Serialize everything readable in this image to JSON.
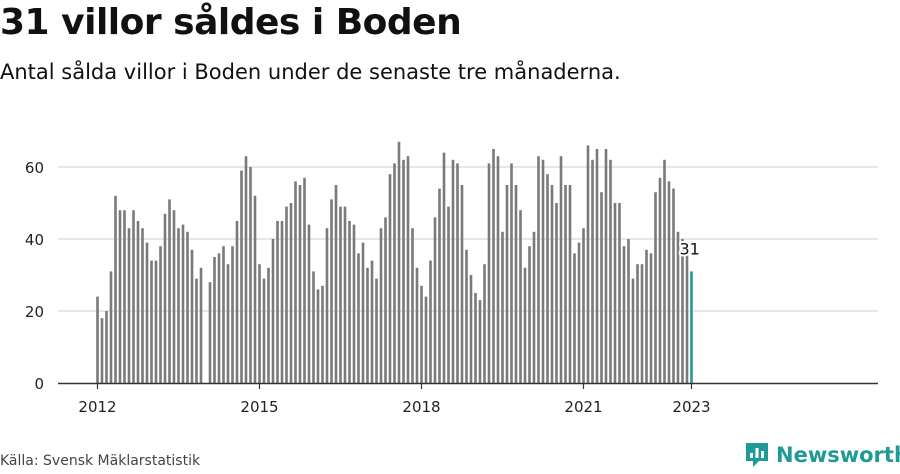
{
  "title": "31 villor såldes i Boden",
  "subtitle": "Antal sålda villor i Boden under de senaste tre månaderna.",
  "source": "Källa: Svensk Mäklarstatistik",
  "brand": "Newsworthy",
  "colors": {
    "bar": "#7a7a7a",
    "highlight": "#1f9a96",
    "grid": "#dddddd",
    "axis": "#333333"
  },
  "chart_data": {
    "type": "bar",
    "title": "31 villor såldes i Boden",
    "xlabel": "",
    "ylabel": "",
    "ylim": [
      0,
      70
    ],
    "yticks": [
      0,
      20,
      40,
      60
    ],
    "xticks": [
      {
        "label": "2012",
        "index": 0
      },
      {
        "label": "2015",
        "index": 36
      },
      {
        "label": "2018",
        "index": 72
      },
      {
        "label": "2021",
        "index": 108
      },
      {
        "label": "2023",
        "index": 132
      }
    ],
    "x_start": "2012-01",
    "highlight_label": "31",
    "values": [
      24,
      18,
      20,
      31,
      52,
      48,
      48,
      43,
      48,
      45,
      43,
      39,
      34,
      34,
      38,
      47,
      51,
      48,
      43,
      44,
      42,
      37,
      29,
      32,
      0,
      28,
      35,
      36,
      38,
      33,
      38,
      45,
      59,
      63,
      60,
      52,
      33,
      29,
      32,
      40,
      45,
      45,
      49,
      50,
      56,
      55,
      57,
      44,
      31,
      26,
      27,
      43,
      51,
      55,
      49,
      49,
      45,
      44,
      36,
      39,
      32,
      34,
      29,
      43,
      46,
      58,
      61,
      67,
      62,
      63,
      43,
      32,
      27,
      24,
      34,
      46,
      54,
      64,
      49,
      62,
      61,
      55,
      37,
      30,
      25,
      23,
      33,
      61,
      65,
      63,
      42,
      55,
      61,
      55,
      48,
      32,
      38,
      42,
      63,
      62,
      58,
      55,
      50,
      63,
      55,
      55,
      36,
      39,
      43,
      66,
      62,
      65,
      53,
      65,
      62,
      50,
      50,
      38,
      40,
      29,
      33,
      33,
      37,
      36,
      53,
      57,
      62,
      56,
      54,
      42,
      40,
      37,
      31
    ]
  }
}
